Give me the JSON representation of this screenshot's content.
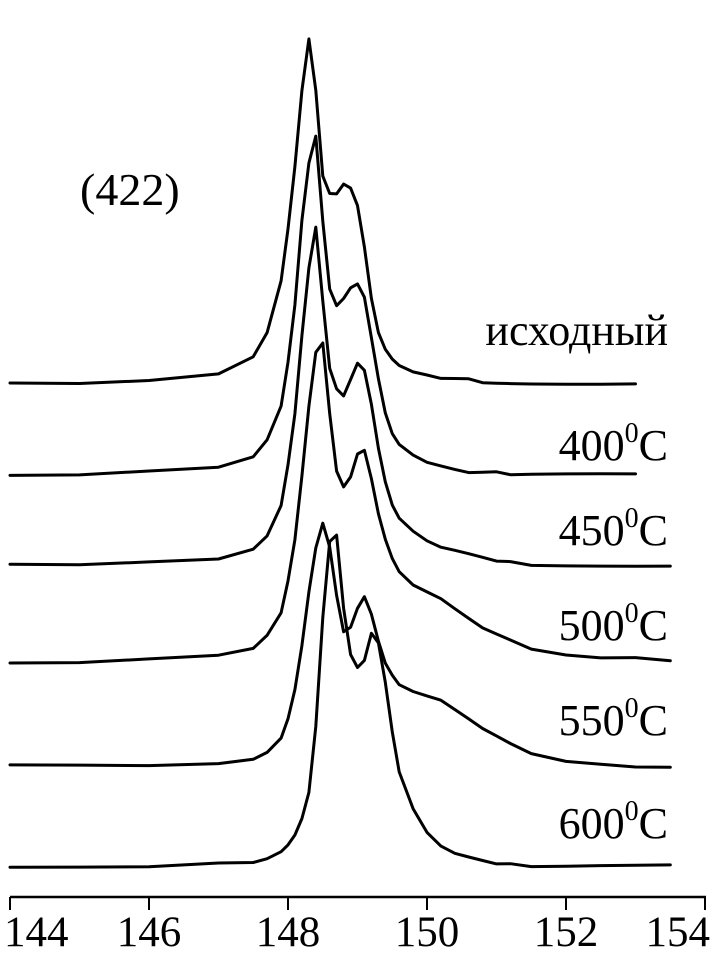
{
  "chart_data": {
    "type": "line",
    "title": "",
    "xlabel": "",
    "ylabel": "",
    "xlim": [
      144,
      154
    ],
    "x_ticks": [
      144,
      146,
      148,
      150,
      152,
      154
    ],
    "x_tick_labels": [
      "144",
      "146",
      "148",
      "150",
      "152",
      "154"
    ],
    "grid": false,
    "annotation": "(422)",
    "x": [
      144.0,
      145.0,
      146.0,
      147.0,
      147.5,
      147.7,
      147.9,
      148.0,
      148.1,
      148.2,
      148.3,
      148.4,
      148.5,
      148.6,
      148.7,
      148.8,
      148.9,
      149.0,
      149.1,
      149.2,
      149.3,
      149.4,
      149.5,
      149.6,
      149.8,
      150.0,
      150.2,
      150.4,
      150.6,
      150.8,
      151.0,
      151.2,
      151.5,
      152.0,
      152.5,
      153.0,
      153.5,
      154.0
    ],
    "series": [
      {
        "name": "исходный",
        "values": [
          0.0,
          0.0,
          0.01,
          0.03,
          0.08,
          0.15,
          0.3,
          0.45,
          0.63,
          0.85,
          1.0,
          0.85,
          0.6,
          0.55,
          0.55,
          0.58,
          0.57,
          0.52,
          0.4,
          0.25,
          0.15,
          0.1,
          0.07,
          0.05,
          0.03,
          0.02,
          0.01,
          0.01,
          0.01,
          0.0,
          0.0,
          0.0,
          0.0,
          0.0,
          0.0,
          0.0,
          0.0,
          0.0
        ]
      },
      {
        "name": "400⁰C",
        "values": [
          0.0,
          0.0,
          0.01,
          0.02,
          0.05,
          0.1,
          0.2,
          0.33,
          0.5,
          0.75,
          0.92,
          1.0,
          0.75,
          0.55,
          0.5,
          0.52,
          0.55,
          0.56,
          0.52,
          0.4,
          0.28,
          0.18,
          0.12,
          0.09,
          0.06,
          0.04,
          0.03,
          0.02,
          0.01,
          0.01,
          0.01,
          0.0,
          0.0,
          0.0,
          0.0,
          0.0,
          0.0,
          0.0
        ]
      },
      {
        "name": "450⁰C",
        "values": [
          0.0,
          0.0,
          0.01,
          0.02,
          0.05,
          0.09,
          0.18,
          0.3,
          0.45,
          0.68,
          0.88,
          1.0,
          0.78,
          0.58,
          0.52,
          0.5,
          0.55,
          0.6,
          0.58,
          0.48,
          0.35,
          0.25,
          0.18,
          0.14,
          0.1,
          0.07,
          0.05,
          0.04,
          0.03,
          0.02,
          0.01,
          0.01,
          0.0,
          0.0,
          0.0,
          0.0,
          0.0,
          0.0
        ]
      },
      {
        "name": "500⁰C",
        "values": [
          0.0,
          0.0,
          0.01,
          0.02,
          0.04,
          0.08,
          0.15,
          0.25,
          0.38,
          0.58,
          0.8,
          0.97,
          1.0,
          0.78,
          0.6,
          0.55,
          0.58,
          0.65,
          0.66,
          0.57,
          0.46,
          0.38,
          0.32,
          0.28,
          0.24,
          0.22,
          0.2,
          0.17,
          0.14,
          0.11,
          0.09,
          0.07,
          0.04,
          0.02,
          0.01,
          0.01,
          0.0,
          0.0
        ]
      },
      {
        "name": "550⁰C",
        "values": [
          0.0,
          0.0,
          0.0,
          0.01,
          0.03,
          0.06,
          0.12,
          0.2,
          0.32,
          0.5,
          0.72,
          0.9,
          1.0,
          0.9,
          0.7,
          0.55,
          0.57,
          0.65,
          0.7,
          0.63,
          0.52,
          0.43,
          0.38,
          0.34,
          0.31,
          0.29,
          0.27,
          0.23,
          0.19,
          0.15,
          0.12,
          0.09,
          0.05,
          0.02,
          0.01,
          0.0,
          0.0,
          0.0
        ]
      },
      {
        "name": "600⁰C",
        "values": [
          0.0,
          0.0,
          0.0,
          0.01,
          0.01,
          0.02,
          0.04,
          0.06,
          0.09,
          0.14,
          0.22,
          0.42,
          0.75,
          0.98,
          1.0,
          0.78,
          0.64,
          0.6,
          0.62,
          0.7,
          0.67,
          0.55,
          0.4,
          0.28,
          0.17,
          0.1,
          0.06,
          0.04,
          0.03,
          0.02,
          0.01,
          0.01,
          0.0,
          0.0,
          0.0,
          0.0,
          0.0,
          0.0
        ]
      }
    ]
  }
}
